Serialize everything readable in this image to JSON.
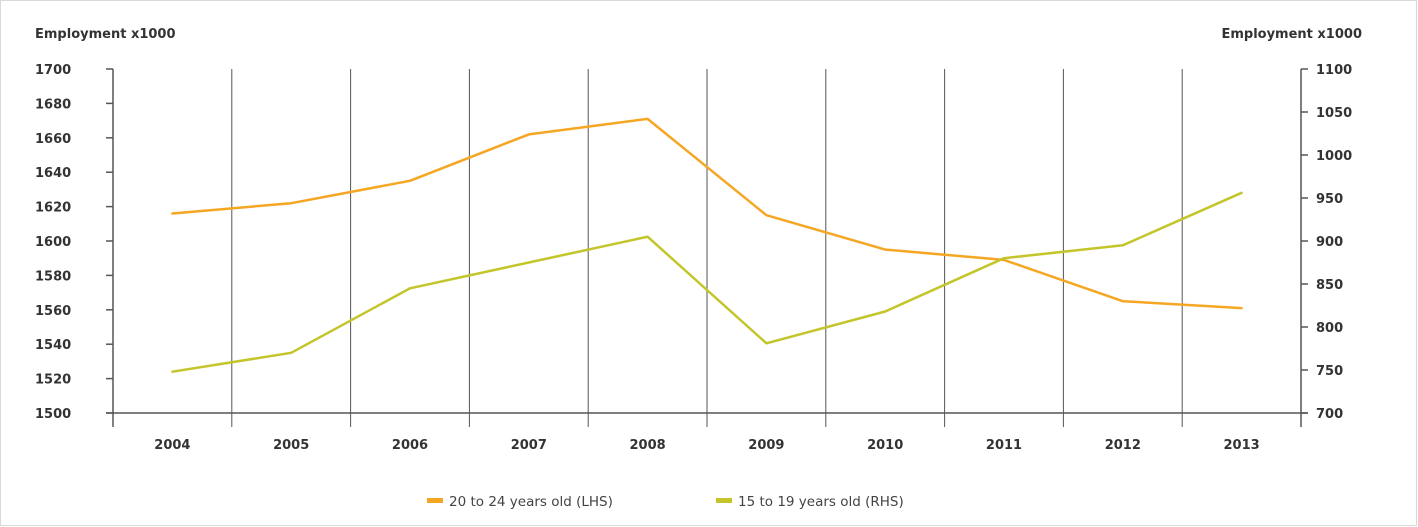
{
  "chart_data": {
    "type": "line",
    "y_left_title": "Employment x1000",
    "y_right_title": "Employment x1000",
    "categories": [
      "2004",
      "2005",
      "2006",
      "2007",
      "2008",
      "2009",
      "2010",
      "2011",
      "2012",
      "2013"
    ],
    "ylim_left": [
      1500,
      1700
    ],
    "yticks_left": [
      "1500",
      "1520",
      "1540",
      "1560",
      "1580",
      "1600",
      "1620",
      "1640",
      "1660",
      "1680",
      "1700"
    ],
    "ylim_right": [
      700,
      1100
    ],
    "yticks_right": [
      "700",
      "750",
      "800",
      "850",
      "900",
      "950",
      "1000",
      "1050",
      "1100"
    ],
    "grid": "vertical",
    "legend_position": "bottom",
    "series": [
      {
        "name": "20 to 24 years old (LHS)",
        "axis": "left",
        "color": "#f5a623",
        "values": [
          1616,
          1622,
          1635,
          1662,
          1671,
          1615,
          1595,
          1589,
          1565,
          1561
        ]
      },
      {
        "name": "15 to 19 years old (RHS)",
        "axis": "right",
        "color": "#c3c52a",
        "values": [
          748,
          770,
          845,
          875,
          905,
          781,
          818,
          880,
          895,
          956
        ]
      }
    ]
  }
}
